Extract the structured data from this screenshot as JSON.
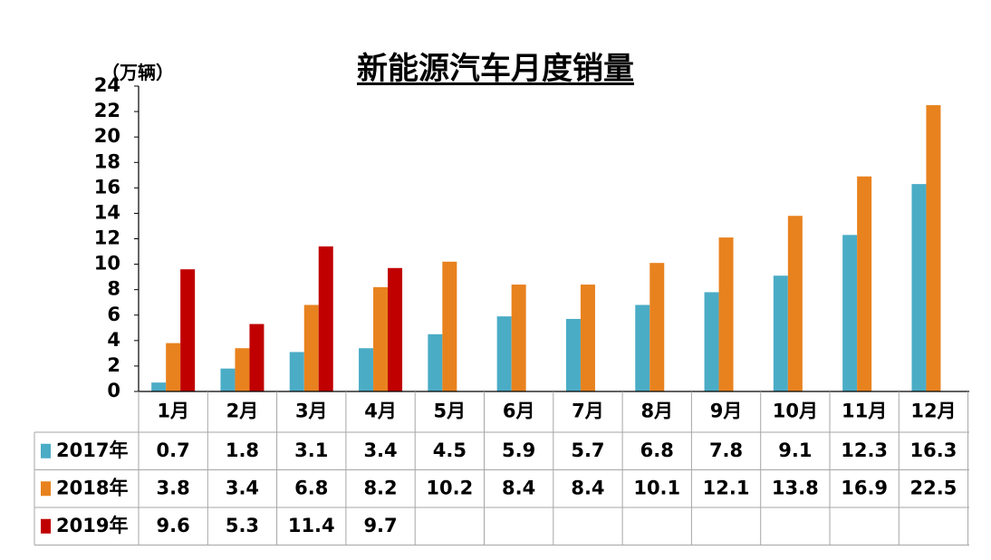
{
  "chart_data": {
    "type": "bar",
    "title": "新能源汽车月度销量",
    "ylabel": "（万辆）",
    "ylim": [
      0,
      24
    ],
    "yticks": [
      0,
      2,
      4,
      6,
      8,
      10,
      12,
      14,
      16,
      18,
      20,
      22,
      24
    ],
    "categories": [
      "1月",
      "2月",
      "3月",
      "4月",
      "5月",
      "6月",
      "7月",
      "8月",
      "9月",
      "10月",
      "11月",
      "12月"
    ],
    "series": [
      {
        "name": "2017年",
        "color": "#4bacc6",
        "values": [
          0.7,
          1.8,
          3.1,
          3.4,
          4.5,
          5.9,
          5.7,
          6.8,
          7.8,
          9.1,
          12.3,
          16.3
        ]
      },
      {
        "name": "2018年",
        "color": "#e8821e",
        "values": [
          3.8,
          3.4,
          6.8,
          8.2,
          10.2,
          8.4,
          8.4,
          10.1,
          12.1,
          13.8,
          16.9,
          22.5
        ]
      },
      {
        "name": "2019年",
        "color": "#c00000",
        "values": [
          9.6,
          5.3,
          11.4,
          9.7,
          null,
          null,
          null,
          null,
          null,
          null,
          null,
          null
        ]
      }
    ],
    "grid": false,
    "legend": "data-table"
  }
}
